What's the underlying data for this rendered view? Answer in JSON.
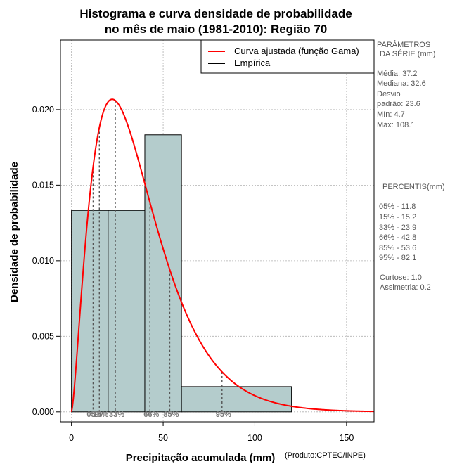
{
  "title_line1": "Histograma e curva densidade de probabilidade",
  "title_line2": "no mês de maio (1981-2010): Região 70",
  "xlabel": "Precipitação acumulada (mm)",
  "ylabel": "Densidade de probabilidade",
  "credit": "(Produto:CPTEC/INPE)",
  "legend": {
    "fitted": "Curva ajustada (função Gama)",
    "empirical": "Empírica"
  },
  "colors": {
    "fitted": "#ff0000",
    "empirical": "#000000",
    "bars": "#b4cccc",
    "grid": "#b0b0b0"
  },
  "parameters": {
    "heading_line1": "PARÂMETROS",
    "heading_line2": "DA SÉRIE (mm)",
    "lines": [
      "Média:  37.2",
      "Mediana:  32.6",
      "Desvio",
      "padrão:  23.6",
      "Mín:  4.7",
      "Máx:  108.1"
    ]
  },
  "percentiles": {
    "heading": "PERCENTIS(mm)",
    "lines": [
      "05% -   11.8",
      "15% -   15.2",
      "33% -   23.9",
      "66% -   42.8",
      "85% -   53.6",
      "95% -   82.1"
    ],
    "stats": [
      "Curtose:  1.0",
      "Assimetria:  0.2"
    ]
  },
  "chart_data": {
    "type": "bar",
    "title": "Histograma e curva densidade de probabilidade no mês de maio (1981-2010): Região 70",
    "xlabel": "Precipitação acumulada (mm)",
    "ylabel": "Densidade de probabilidade",
    "xlim": [
      -6,
      165
    ],
    "ylim": [
      -0.00066,
      0.0246
    ],
    "xticks": [
      0,
      50,
      100,
      150
    ],
    "xtick_labels": [
      "0",
      "50",
      "100",
      "150"
    ],
    "yticks": [
      0,
      0.005,
      0.01,
      0.015,
      0.02
    ],
    "ytick_labels": [
      "0.000",
      "0.005",
      "0.010",
      "0.015",
      "0.020"
    ],
    "grid": true,
    "legend_position": "top-right",
    "histogram": {
      "bin_edges": [
        0,
        20,
        40,
        60,
        120
      ],
      "density": [
        0.01333,
        0.01333,
        0.01833,
        0.00167
      ]
    },
    "gamma_curve": {
      "shape": 2.484,
      "scale": 14.98,
      "x_max": 165
    },
    "percentile_markers": [
      {
        "label": "05%",
        "x": 11.8
      },
      {
        "label": "15%",
        "x": 15.2
      },
      {
        "label": "33%",
        "x": 23.9
      },
      {
        "label": "66%",
        "x": 42.8
      },
      {
        "label": "85%",
        "x": 53.6
      },
      {
        "label": "95%",
        "x": 82.1
      }
    ]
  }
}
